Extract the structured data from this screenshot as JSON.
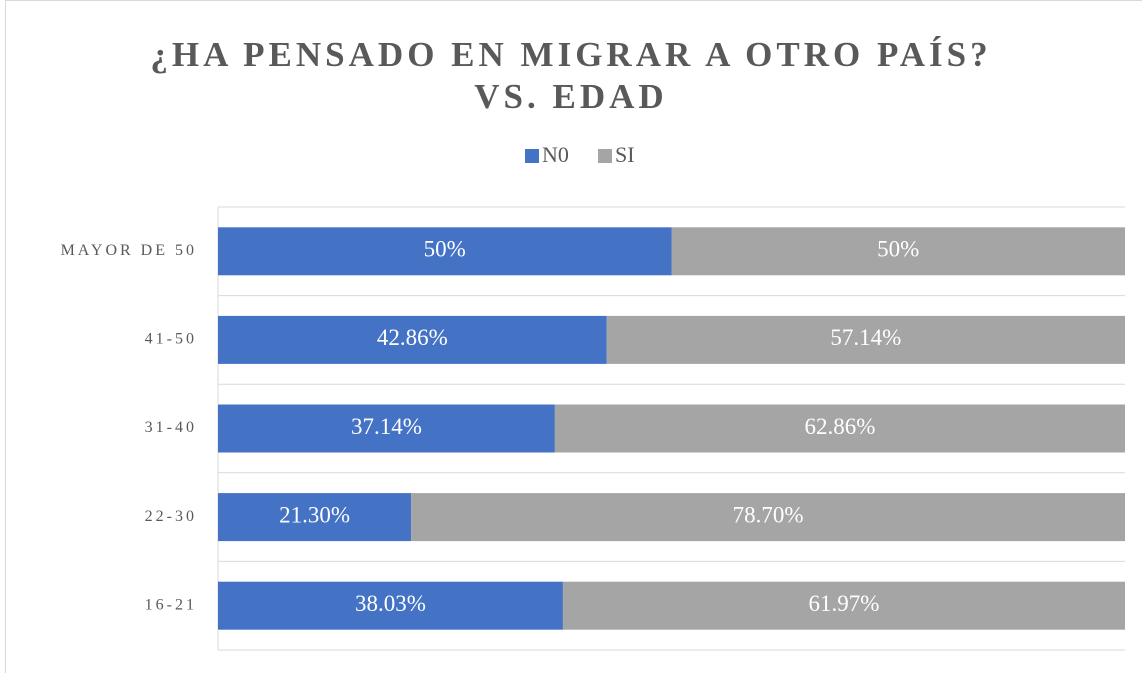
{
  "chart_data": {
    "type": "stacked-bar-horizontal",
    "title": [
      "¿HA PENSADO EN MIGRAR A OTRO PAÍS?",
      "VS. EDAD"
    ],
    "categories": [
      "MAYOR DE 50",
      "41-50",
      "31-40",
      "22-30",
      "16-21"
    ],
    "series": [
      {
        "name": "N0",
        "color": "#4472c4",
        "values": [
          50,
          42.86,
          37.14,
          21.3,
          38.03
        ],
        "value_labels": [
          "50%",
          "42.86%",
          "37.14%",
          "21.30%",
          "38.03%"
        ]
      },
      {
        "name": "SI",
        "color": "#a5a5a5",
        "values": [
          50,
          57.14,
          62.86,
          78.7,
          61.97
        ],
        "value_labels": [
          "50%",
          "57.14%",
          "62.86%",
          "78.70%",
          "61.97%"
        ]
      }
    ],
    "xlim": [
      0,
      100
    ],
    "legend": "top"
  }
}
